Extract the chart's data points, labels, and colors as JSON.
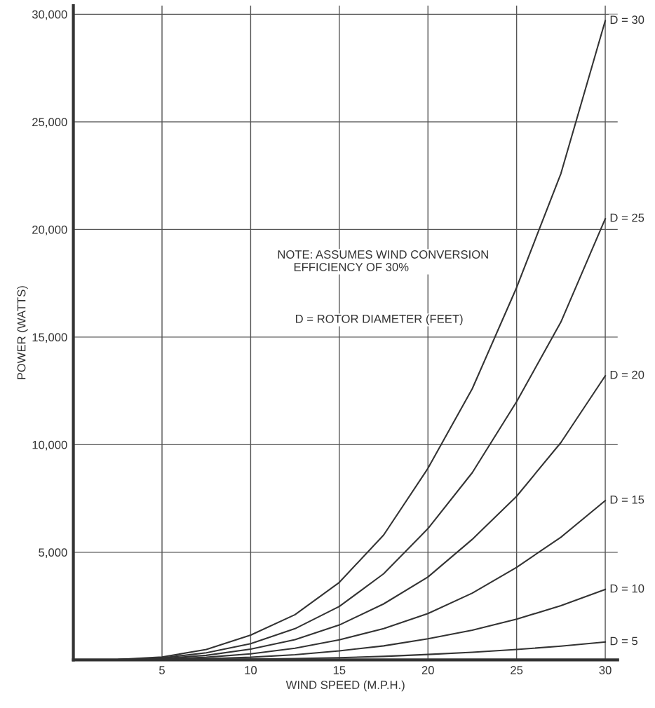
{
  "chart_data": {
    "type": "line",
    "xlabel": "WIND SPEED (M.P.H.)",
    "ylabel": "POWER (WATTS)",
    "x": [
      0,
      2.5,
      5,
      7.5,
      10,
      12.5,
      15,
      17.5,
      20,
      22.5,
      25,
      27.5,
      30
    ],
    "series": [
      {
        "name": "D = 30",
        "color": "#333333",
        "values": [
          0,
          20,
          130,
          480,
          1150,
          2100,
          3600,
          5800,
          8900,
          12600,
          17300,
          22600,
          29700
        ]
      },
      {
        "name": "D = 25",
        "color": "#333333",
        "values": [
          0,
          10,
          90,
          330,
          750,
          1450,
          2480,
          4000,
          6100,
          8700,
          12000,
          15700,
          20500
        ]
      },
      {
        "name": "D = 20",
        "color": "#333333",
        "values": [
          0,
          10,
          60,
          210,
          500,
          940,
          1620,
          2600,
          3850,
          5600,
          7600,
          10100,
          13200
        ]
      },
      {
        "name": "D = 15",
        "color": "#333333",
        "values": [
          0,
          0,
          40,
          120,
          280,
          540,
          930,
          1450,
          2150,
          3100,
          4300,
          5700,
          7400
        ]
      },
      {
        "name": "D = 10",
        "color": "#333333",
        "values": [
          0,
          0,
          20,
          50,
          120,
          240,
          420,
          650,
          980,
          1380,
          1890,
          2520,
          3270
        ]
      },
      {
        "name": "D = 5",
        "color": "#333333",
        "values": [
          0,
          0,
          0,
          10,
          30,
          60,
          100,
          160,
          250,
          350,
          480,
          640,
          830
        ]
      }
    ],
    "xlim": [
      0,
      30.7
    ],
    "ylim": [
      0,
      30400
    ],
    "xticks": [
      5,
      10,
      15,
      20,
      25,
      30
    ],
    "yticks": [
      {
        "value": 5000,
        "label": "5,000"
      },
      {
        "value": 10000,
        "label": "10,000"
      },
      {
        "value": 15000,
        "label": "15,000"
      },
      {
        "value": 20000,
        "label": "20,000"
      },
      {
        "value": 25000,
        "label": "25,000"
      },
      {
        "value": 30000,
        "label": "30,000"
      }
    ],
    "grid": true,
    "legend": false,
    "marker": "none",
    "line_style": "solid",
    "annotations": [
      "NOTE: ASSUMES WIND CONVERSION\n     EFFICIENCY OF 30%",
      "D = ROTOR DIAMETER (FEET)"
    ]
  }
}
